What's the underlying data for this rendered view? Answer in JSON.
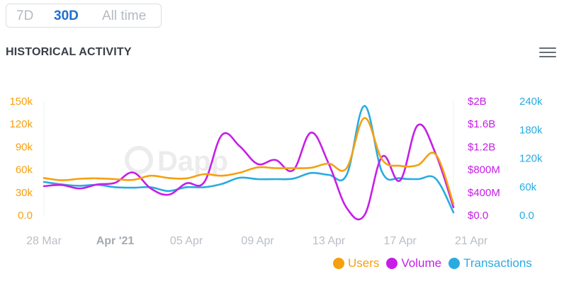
{
  "range_tabs": [
    "7D",
    "30D",
    "All time"
  ],
  "active_tab": "30D",
  "title": "HISTORICAL ACTIVITY",
  "menu_icon": "hamburger-menu-icon",
  "colors": {
    "users": "#f5a00f",
    "volume": "#c61ee8",
    "transactions": "#29abe2"
  },
  "chart_data": {
    "type": "line",
    "x_ticks": [
      "28 Mar",
      "Apr '21",
      "05 Apr",
      "09 Apr",
      "13 Apr",
      "17 Apr",
      "21 Apr"
    ],
    "x_ticks_bold": "Apr '21",
    "x_days": [
      0,
      1,
      2,
      3,
      4,
      5,
      6,
      7,
      8,
      9,
      10,
      11,
      12,
      13,
      14,
      15,
      16,
      17,
      18,
      19,
      20,
      21,
      22,
      23
    ],
    "axes": {
      "users": {
        "ticks": [
          "150k",
          "120k",
          "90k",
          "60k",
          "30k",
          "0.0"
        ],
        "range": [
          0,
          150000
        ]
      },
      "volume": {
        "ticks": [
          "$2B",
          "$1.6B",
          "$1.2B",
          "$800M",
          "$400M",
          "$0.0"
        ],
        "range": [
          0,
          2000000000
        ]
      },
      "transactions": {
        "ticks": [
          "240k",
          "180k",
          "120k",
          "60k",
          "0.0"
        ],
        "range": [
          0,
          240000
        ]
      }
    },
    "series": [
      {
        "name": "Users",
        "key": "users",
        "values": [
          49000,
          46000,
          48000,
          48500,
          47500,
          46500,
          52000,
          49000,
          48500,
          54000,
          52000,
          56000,
          63000,
          62000,
          62000,
          62500,
          68000,
          62000,
          128000,
          73000,
          65000,
          66000,
          80000,
          15000
        ]
      },
      {
        "name": "Volume",
        "key": "volume",
        "values": [
          510000000,
          530000000,
          470000000,
          540000000,
          570000000,
          750000000,
          470000000,
          360000000,
          560000000,
          580000000,
          1410000000,
          1210000000,
          900000000,
          970000000,
          790000000,
          1450000000,
          900000000,
          130000000,
          0,
          1030000000,
          610000000,
          1580000000,
          1080000000,
          140000000
        ]
      },
      {
        "name": "Transactions",
        "key": "transactions",
        "values": [
          70000,
          65000,
          62000,
          64000,
          59000,
          58000,
          59000,
          51000,
          59000,
          59000,
          66000,
          79000,
          76000,
          76000,
          77000,
          89000,
          85000,
          85000,
          230000,
          90000,
          78000,
          76000,
          77000,
          6000
        ]
      }
    ],
    "legend_position": "bottom-right",
    "grid": false
  }
}
